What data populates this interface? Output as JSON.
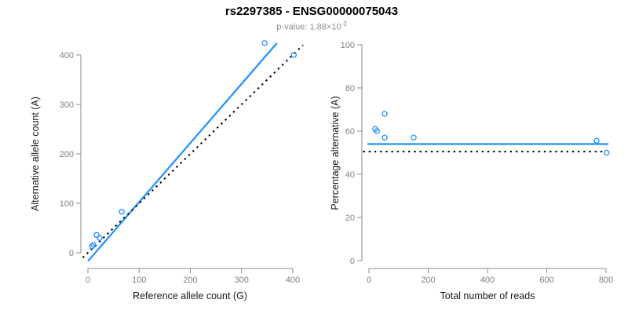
{
  "header": {
    "title": "rs2297385 - ENSG00000075043",
    "subtitle_label": "p-value: ",
    "subtitle_value": "1.88×10",
    "subtitle_exponent": "-3"
  },
  "colors": {
    "accent_blue": "#1E90FF",
    "dotted_black": "#000000",
    "axis_line_gray": "#898989",
    "tick_label_gray": "#808080",
    "axis_label_black": "#1a1a1a",
    "subtitle_gray": "#8e8e8e"
  },
  "chart_data": [
    {
      "id": "allele-counts-scatter",
      "type": "scatter",
      "xlabel": "Reference allele count (G)",
      "ylabel": "Alternative allele count (A)",
      "xlim": [
        0,
        400
      ],
      "ylim": [
        0,
        400
      ],
      "xticks": [
        0,
        100,
        200,
        300,
        400
      ],
      "yticks": [
        0,
        100,
        200,
        300,
        400
      ],
      "grid": false,
      "legend": false,
      "point_color": "#1E90FF",
      "points": [
        [
          8,
          13
        ],
        [
          11,
          16
        ],
        [
          17,
          36
        ],
        [
          23,
          30
        ],
        [
          66,
          83
        ],
        [
          345,
          424
        ],
        [
          402,
          400
        ]
      ],
      "lines": [
        {
          "name": "regression-line",
          "style": "solid",
          "color": "#1E90FF",
          "width": 2.2,
          "points": [
            [
              0,
              -17
            ],
            [
              369,
              424
            ]
          ]
        },
        {
          "name": "identity-line",
          "style": "dotted",
          "color": "#000000",
          "width": 2,
          "points": [
            [
              -10,
              -10
            ],
            [
              420,
              420
            ]
          ]
        }
      ]
    },
    {
      "id": "percentage-vs-reads-scatter",
      "type": "scatter",
      "xlabel": "Total number of reads",
      "ylabel": "Percentage alternative (A)",
      "xlim": [
        0,
        800
      ],
      "ylim": [
        0,
        100
      ],
      "xticks": [
        0,
        200,
        400,
        600,
        800
      ],
      "yticks": [
        0,
        20,
        40,
        60,
        80,
        100
      ],
      "grid": false,
      "legend": false,
      "point_color": "#1E90FF",
      "points": [
        [
          21,
          61
        ],
        [
          27,
          60
        ],
        [
          53,
          68
        ],
        [
          53,
          57
        ],
        [
          151,
          57
        ],
        [
          768,
          55.5
        ],
        [
          802,
          50
        ]
      ],
      "lines": [
        {
          "name": "mean-line",
          "style": "solid",
          "color": "#1E90FF",
          "width": 2.2,
          "points": [
            [
              -5,
              54
            ],
            [
              808,
              54
            ]
          ]
        },
        {
          "name": "reference-line",
          "style": "dotted",
          "color": "#000000",
          "width": 2,
          "points": [
            [
              -20,
              50.5
            ],
            [
              790,
              50.5
            ]
          ]
        }
      ]
    }
  ]
}
